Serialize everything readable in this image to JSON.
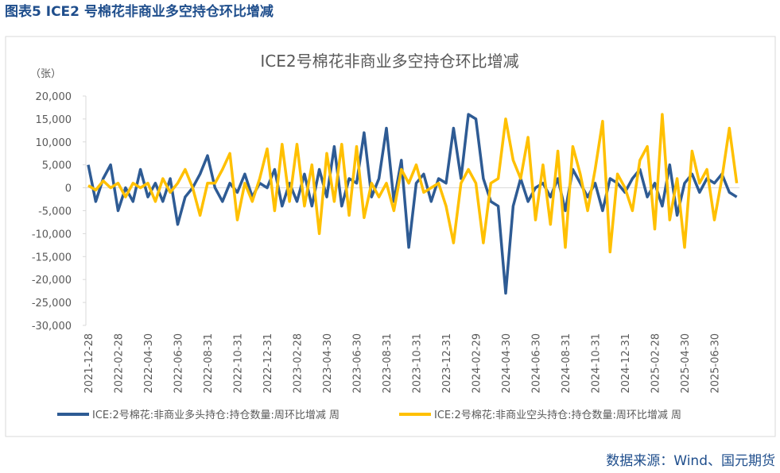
{
  "page_title": "图表5 ICE2 号棉花非商业多空持仓环比增减",
  "source": "数据来源：Wind、国元期货",
  "chart_data": {
    "type": "line",
    "title": "ICE2号棉花非商业多空持仓环比增减",
    "unit_label": "（张）",
    "categories": [
      "2021-12-28",
      null,
      null,
      null,
      "2022-02-28",
      null,
      null,
      null,
      "2022-04-30",
      null,
      null,
      null,
      "2022-06-30",
      null,
      null,
      null,
      "2022-08-31",
      null,
      null,
      null,
      "2022-10-31",
      null,
      null,
      null,
      "2022-12-31",
      null,
      null,
      null,
      "2023-02-28",
      null,
      null,
      null,
      "2023-04-30",
      null,
      null,
      null,
      "2023-06-30",
      null,
      null,
      null,
      "2023-08-31",
      null,
      null,
      null,
      "2023-10-31",
      null,
      null,
      null,
      "2023-12-31",
      null,
      null,
      null,
      "2024-02-29",
      null,
      null,
      null,
      "2024-04-30",
      null,
      null,
      null,
      "2024-06-30",
      null,
      null,
      null,
      "2024-08-31",
      null,
      null,
      null,
      "2024-10-31",
      null,
      null,
      null,
      "2024-12-31",
      null,
      null,
      null,
      "2025-02-28",
      null,
      null,
      null,
      "2025-04-30",
      null,
      null,
      null,
      "2025-06-30",
      null,
      null,
      null
    ],
    "series": [
      {
        "name": "ICE:2号棉花:非商业多头持仓:持仓数量:周环比增减 周",
        "color": "#2e5b94",
        "values": [
          5000,
          -3000,
          2000,
          5000,
          -5000,
          0,
          -3000,
          4000,
          -2000,
          1000,
          -3000,
          2000,
          -8000,
          -2000,
          0,
          3000,
          7000,
          0,
          -3000,
          1000,
          -1000,
          3000,
          -2000,
          1000,
          0,
          4000,
          -4000,
          1000,
          -3000,
          3000,
          -4000,
          4000,
          -2000,
          9000,
          -4000,
          2000,
          1000,
          12000,
          -2000,
          2000,
          13000,
          -3000,
          6000,
          -13000,
          1000,
          3000,
          -3000,
          2000,
          1000,
          13000,
          2000,
          16000,
          15000,
          2000,
          -3000,
          -4000,
          -23000,
          -4000,
          2000,
          -3000,
          0,
          1000,
          -2000,
          2000,
          -5000,
          4000,
          1000,
          -2000,
          1000,
          -5000,
          2000,
          1000,
          -1000,
          2000,
          4000,
          -2000,
          1000,
          -4000,
          5000,
          -6000,
          1000,
          3000,
          -1000,
          2000,
          1000,
          3000,
          -1000,
          -2000
        ]
      },
      {
        "name": "ICE:2号棉花:非商业空头持仓:持仓数量:周环比增减 周",
        "color": "#ffc000",
        "values": [
          500,
          -500,
          1500,
          0,
          1000,
          -2000,
          1000,
          0,
          1000,
          -3000,
          2000,
          -1000,
          1000,
          4000,
          0,
          -6000,
          1000,
          1000,
          4000,
          7500,
          -7000,
          1000,
          -3000,
          2000,
          8500,
          -5000,
          9500,
          -3000,
          9500,
          -4000,
          5000,
          -10000,
          7500,
          -3000,
          9500,
          -6000,
          9000,
          -6500,
          1000,
          -2000,
          1000,
          -5000,
          4000,
          1000,
          5000,
          -1000,
          0,
          1000,
          -4000,
          -12000,
          1000,
          4000,
          1000,
          -12000,
          1000,
          2000,
          15000,
          6000,
          2000,
          11000,
          -7000,
          5000,
          -8000,
          8000,
          -13000,
          9000,
          3000,
          -5000,
          4000,
          14500,
          -14000,
          3000,
          0,
          -5000,
          6000,
          9000,
          -9000,
          16000,
          -7000,
          2000,
          -13000,
          8000,
          1000,
          4000,
          -7000,
          2000,
          13000,
          1000
        ]
      }
    ],
    "ylim": [
      -30000,
      20000
    ],
    "yticks": [
      {
        "value": -30000,
        "label": "-30,000"
      },
      {
        "value": -25000,
        "label": "-25,000"
      },
      {
        "value": -20000,
        "label": "-20,000"
      },
      {
        "value": -15000,
        "label": "-15,000"
      },
      {
        "value": -10000,
        "label": "-10,000"
      },
      {
        "value": -5000,
        "label": "-5,000"
      },
      0,
      {
        "value": 5000,
        "label": "5,000"
      },
      {
        "value": 10000,
        "label": "10,000"
      },
      {
        "value": 15000,
        "label": "15,000"
      },
      {
        "value": 20000,
        "label": "20,000"
      }
    ],
    "legend": "bottom"
  }
}
